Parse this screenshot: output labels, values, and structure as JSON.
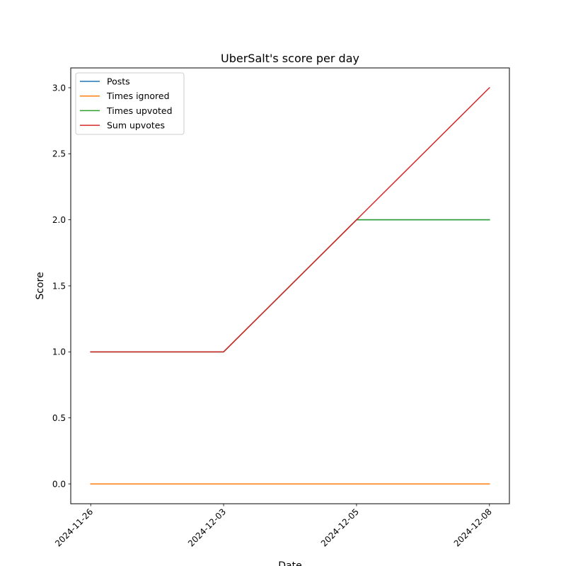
{
  "chart_data": {
    "type": "line",
    "title": "UberSalt's score per day",
    "xlabel": "Date",
    "ylabel": "Score",
    "categories": [
      "2024-11-26",
      "2024-12-03",
      "2024-12-05",
      "2024-12-08"
    ],
    "ylim": [
      -0.15,
      3.15
    ],
    "yticks": [
      0.0,
      0.5,
      1.0,
      1.5,
      2.0,
      2.5,
      3.0
    ],
    "ytick_labels": [
      "0.0",
      "0.5",
      "1.0",
      "1.5",
      "2.0",
      "2.5",
      "3.0"
    ],
    "grid": false,
    "legend": "top-left",
    "series": [
      {
        "name": "Posts",
        "color": "#1f77b4",
        "values": [
          1,
          1,
          2,
          2
        ]
      },
      {
        "name": "Times ignored",
        "color": "#ff7f0e",
        "values": [
          0,
          0,
          0,
          0
        ]
      },
      {
        "name": "Times upvoted",
        "color": "#2ca02c",
        "values": [
          1,
          1,
          2,
          2
        ]
      },
      {
        "name": "Sum upvotes",
        "color": "#d62728",
        "values": [
          1,
          1,
          2,
          3
        ]
      }
    ]
  }
}
